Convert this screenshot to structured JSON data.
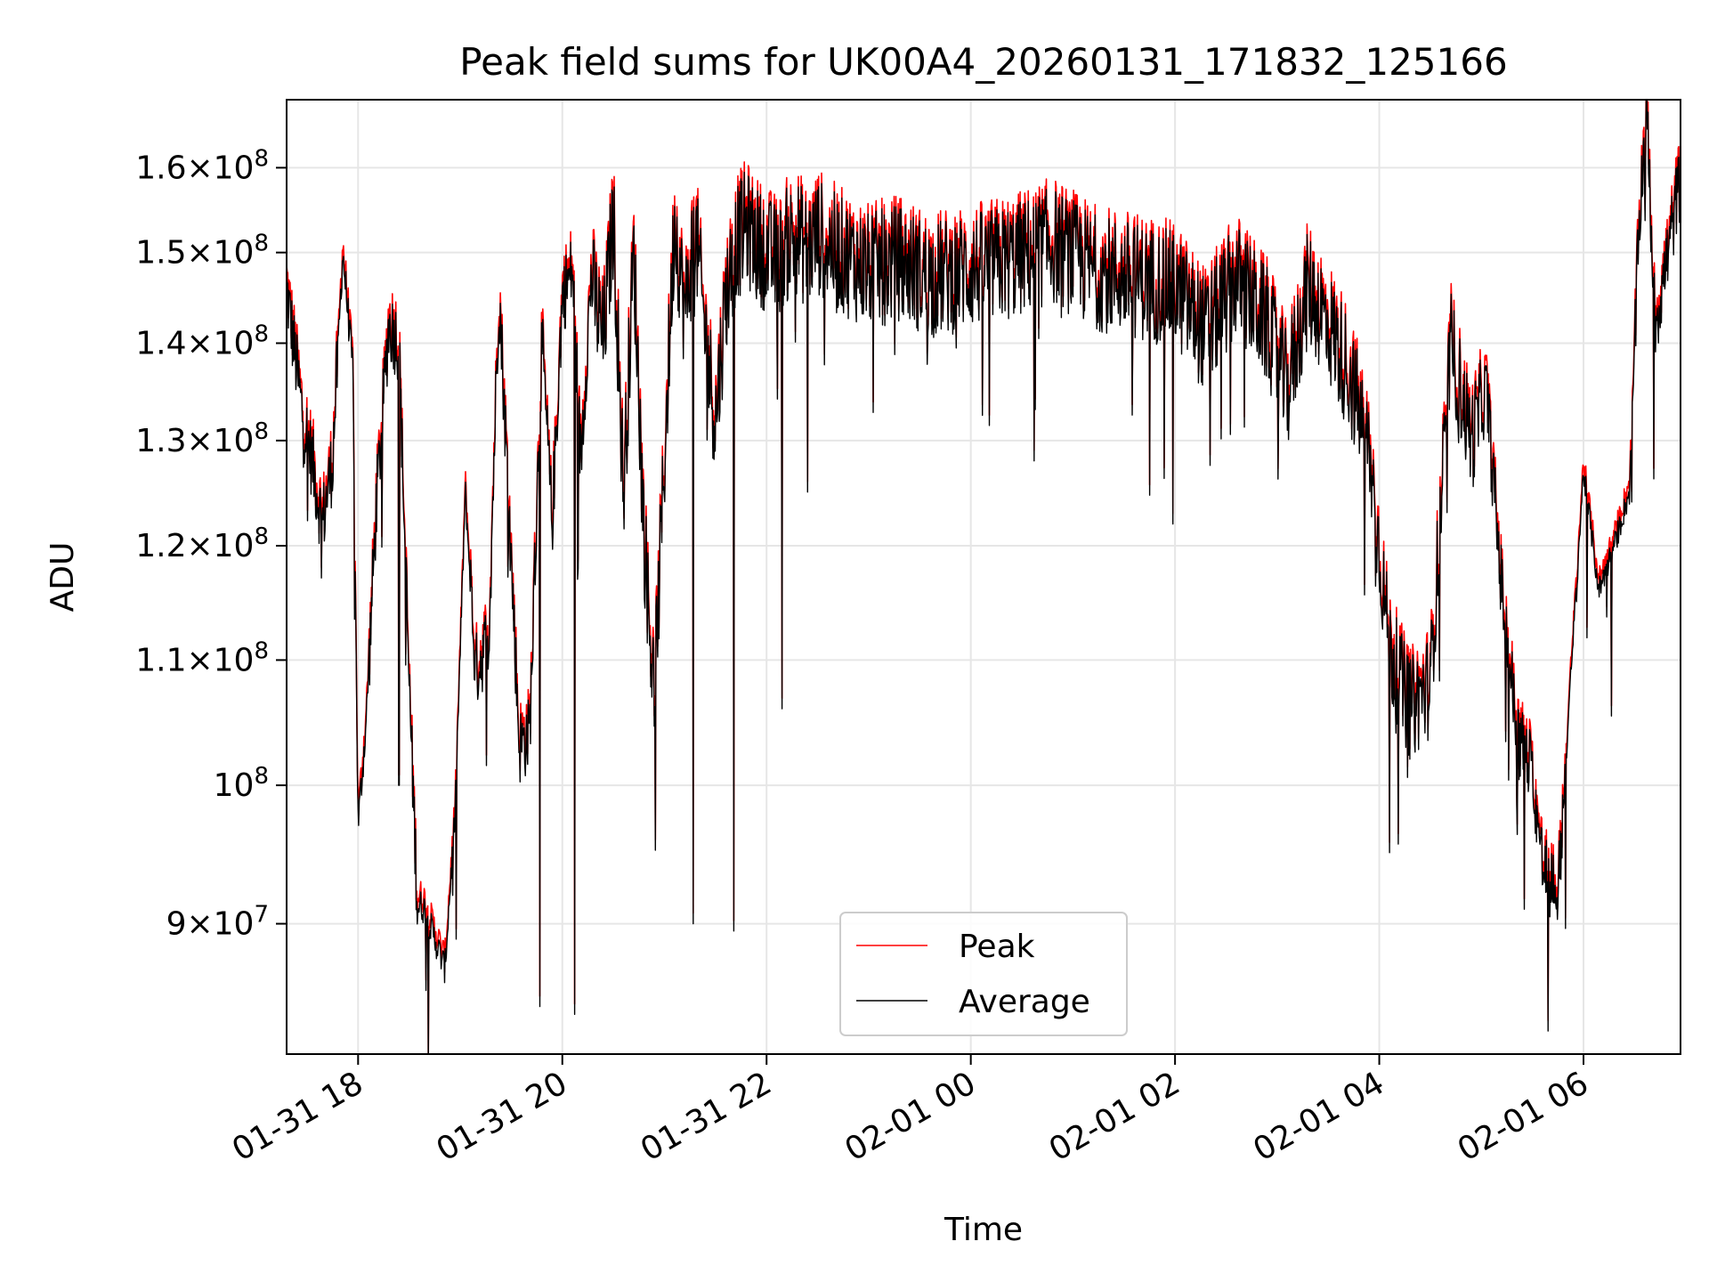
{
  "chart_data": {
    "type": "line",
    "title": "Peak field sums for UK00A4_20260131_171832_125166",
    "xlabel": "Time",
    "ylabel": "ADU",
    "yscale": "log",
    "xlim_hours": [
      -6.7,
      6.95
    ],
    "ylim": [
      81500000,
      168500000
    ],
    "grid": true,
    "legend_location": "lower center",
    "x_ticks": [
      {
        "hour": -6,
        "label": "01-31 18"
      },
      {
        "hour": -4,
        "label": "01-31 20"
      },
      {
        "hour": -2,
        "label": "01-31 22"
      },
      {
        "hour": 0,
        "label": "02-01 00"
      },
      {
        "hour": 2,
        "label": "02-01 02"
      },
      {
        "hour": 4,
        "label": "02-01 04"
      },
      {
        "hour": 6,
        "label": "02-01 06"
      }
    ],
    "y_ticks": [
      {
        "value": 90000000,
        "mantissa": "9",
        "exponent": "7",
        "base": "10",
        "times": "×"
      },
      {
        "value": 100000000,
        "mantissa": "",
        "exponent": "8",
        "base": "10",
        "times": ""
      },
      {
        "value": 110000000,
        "mantissa": "1.1",
        "exponent": "8",
        "base": "10",
        "times": "×"
      },
      {
        "value": 120000000,
        "mantissa": "1.2",
        "exponent": "8",
        "base": "10",
        "times": "×"
      },
      {
        "value": 130000000,
        "mantissa": "1.3",
        "exponent": "8",
        "base": "10",
        "times": "×"
      },
      {
        "value": 140000000,
        "mantissa": "1.4",
        "exponent": "8",
        "base": "10",
        "times": "×"
      },
      {
        "value": 150000000,
        "mantissa": "1.5",
        "exponent": "8",
        "base": "10",
        "times": "×"
      },
      {
        "value": 160000000,
        "mantissa": "1.6",
        "exponent": "8",
        "base": "10",
        "times": "×"
      }
    ],
    "series": [
      {
        "name": "Peak",
        "color": "#ff0000",
        "offset_fraction": 0.008
      },
      {
        "name": "Average",
        "color": "#000000",
        "offset_fraction": 0.0
      }
    ],
    "average_envelope": {
      "x_hours": [
        -6.7,
        -6.55,
        -6.45,
        -6.35,
        -6.25,
        -6.15,
        -6.05,
        -6.0,
        -5.92,
        -5.82,
        -5.7,
        -5.6,
        -5.5,
        -5.42,
        -5.35,
        -5.25,
        -5.15,
        -5.05,
        -4.95,
        -4.85,
        -4.72,
        -4.62,
        -4.52,
        -4.42,
        -4.32,
        -4.2,
        -4.1,
        -4.0,
        -3.9,
        -3.82,
        -3.72,
        -3.6,
        -3.5,
        -3.4,
        -3.3,
        -3.2,
        -3.1,
        -3.0,
        -2.9,
        -2.8,
        -2.7,
        -2.6,
        -2.5,
        -2.4,
        -2.3,
        -2.2,
        -2.1,
        -2.0,
        -1.9,
        -1.8,
        -1.7,
        -1.6,
        -1.5,
        -1.3,
        -1.0,
        -0.7,
        -0.4,
        0.0,
        0.4,
        0.8,
        1.2,
        1.6,
        2.0,
        2.3,
        2.6,
        2.9,
        3.1,
        3.3,
        3.5,
        3.7,
        3.9,
        4.1,
        4.3,
        4.5,
        4.7,
        4.9,
        5.05,
        5.2,
        5.35,
        5.5,
        5.6,
        5.75,
        5.85,
        6.0,
        6.15,
        6.3,
        6.45,
        6.55,
        6.62,
        6.7,
        6.8,
        6.95
      ],
      "values": [
        146000000,
        133000000,
        128000000,
        122000000,
        128000000,
        150000000,
        137000000,
        97000000,
        105000000,
        124000000,
        142000000,
        140000000,
        108000000,
        91500000,
        91000000,
        89000000,
        87000000,
        98000000,
        125000000,
        109000000,
        112000000,
        146000000,
        123000000,
        103000000,
        104000000,
        140000000,
        122000000,
        145000000,
        148000000,
        128000000,
        147000000,
        140000000,
        154000000,
        125000000,
        150000000,
        121000000,
        107000000,
        128000000,
        154000000,
        143000000,
        153000000,
        141000000,
        132000000,
        145000000,
        151000000,
        153000000,
        151000000,
        150000000,
        149000000,
        151000000,
        152000000,
        150000000,
        152000000,
        150000000,
        148000000,
        149000000,
        147000000,
        148000000,
        149000000,
        151000000,
        148000000,
        147000000,
        146000000,
        141000000,
        147000000,
        142000000,
        135000000,
        146000000,
        142000000,
        137000000,
        129000000,
        111000000,
        106000000,
        108000000,
        140000000,
        130000000,
        135000000,
        116000000,
        104000000,
        101000000,
        94000000,
        92000000,
        105000000,
        127000000,
        116000000,
        120000000,
        125000000,
        155000000,
        167000000,
        142000000,
        148000000,
        159000000
      ]
    },
    "deep_dips": [
      {
        "hour": -5.6,
        "value": 100000000
      },
      {
        "hour": -4.22,
        "value": 84500000
      },
      {
        "hour": -3.88,
        "value": 84000000
      },
      {
        "hour": -2.72,
        "value": 90000000
      },
      {
        "hour": -2.32,
        "value": 89500000
      },
      {
        "hour": -1.85,
        "value": 106000000
      },
      {
        "hour": -1.6,
        "value": 125000000
      },
      {
        "hour": 0.62,
        "value": 128000000
      },
      {
        "hour": 1.98,
        "value": 122000000
      },
      {
        "hour": 4.1,
        "value": 95000000
      },
      {
        "hour": 5.42,
        "value": 91000000
      },
      {
        "hour": 5.7,
        "value": 91500000
      }
    ]
  }
}
